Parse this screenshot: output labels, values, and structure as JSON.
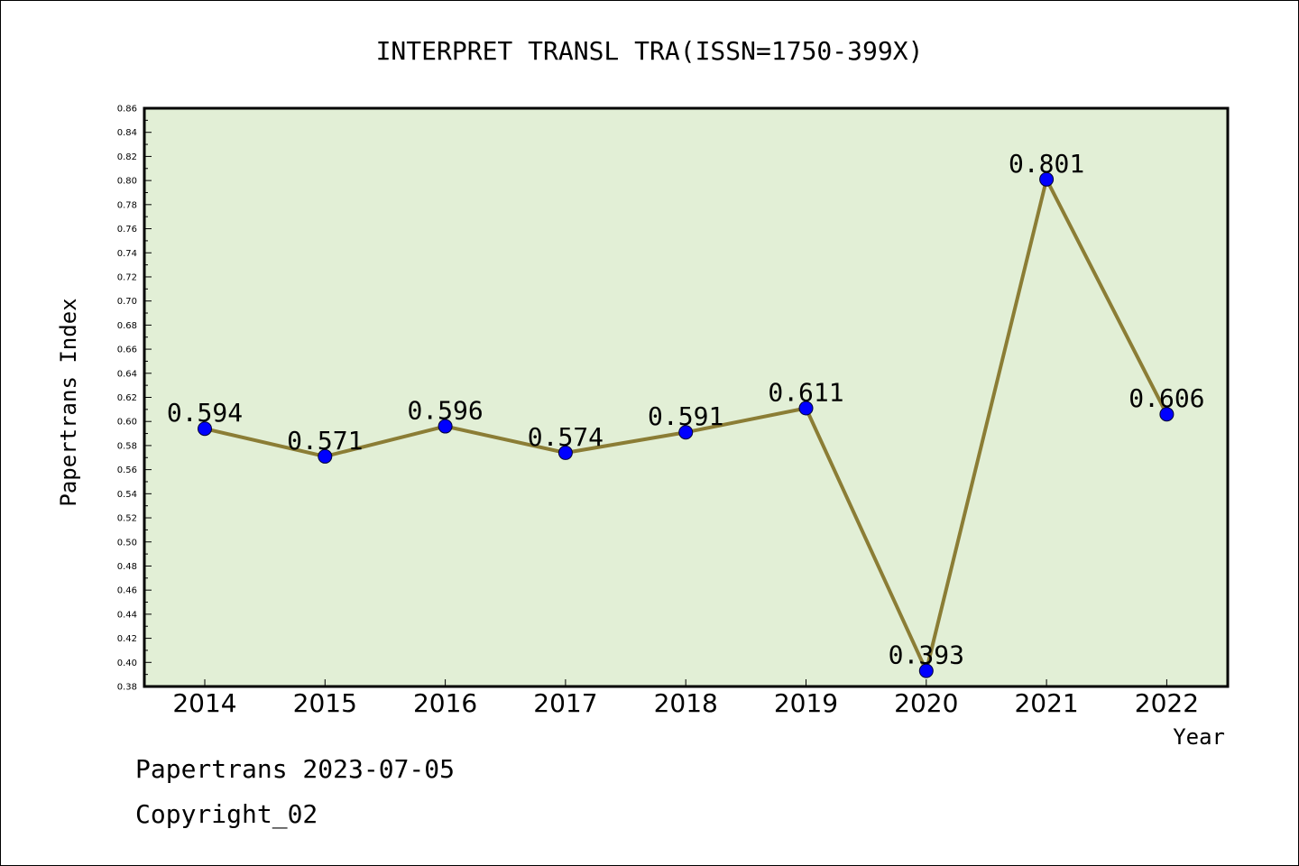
{
  "chart_data": {
    "type": "line",
    "title": "INTERPRET TRANSL TRA(ISSN=1750-399X)",
    "xlabel": "Year",
    "ylabel": "Papertrans Index",
    "categories": [
      "2014",
      "2015",
      "2016",
      "2017",
      "2018",
      "2019",
      "2020",
      "2021",
      "2022"
    ],
    "series": [
      {
        "values": [
          0.594,
          0.571,
          0.596,
          0.574,
          0.591,
          0.611,
          0.393,
          0.801,
          0.606
        ]
      }
    ],
    "data_labels": [
      "0.594",
      "0.571",
      "0.596",
      "0.574",
      "0.591",
      "0.611",
      "0.393",
      "0.801",
      "0.606"
    ],
    "ylim": [
      0.38,
      0.86
    ],
    "yticks": [
      "0.38",
      "0.40",
      "0.42",
      "0.44",
      "0.46",
      "0.48",
      "0.50",
      "0.52",
      "0.54",
      "0.56",
      "0.58",
      "0.60",
      "0.62",
      "0.64",
      "0.66",
      "0.68",
      "0.70",
      "0.72",
      "0.74",
      "0.76",
      "0.78",
      "0.80",
      "0.82",
      "0.84",
      "0.86"
    ],
    "grid": false,
    "colors": {
      "plot_background": "#e2efd6",
      "line": "#8b7d35",
      "marker": "#0000ff"
    }
  },
  "footer": {
    "source_line": "Papertrans 2023-07-05",
    "copyright_line": "Copyright_02"
  }
}
